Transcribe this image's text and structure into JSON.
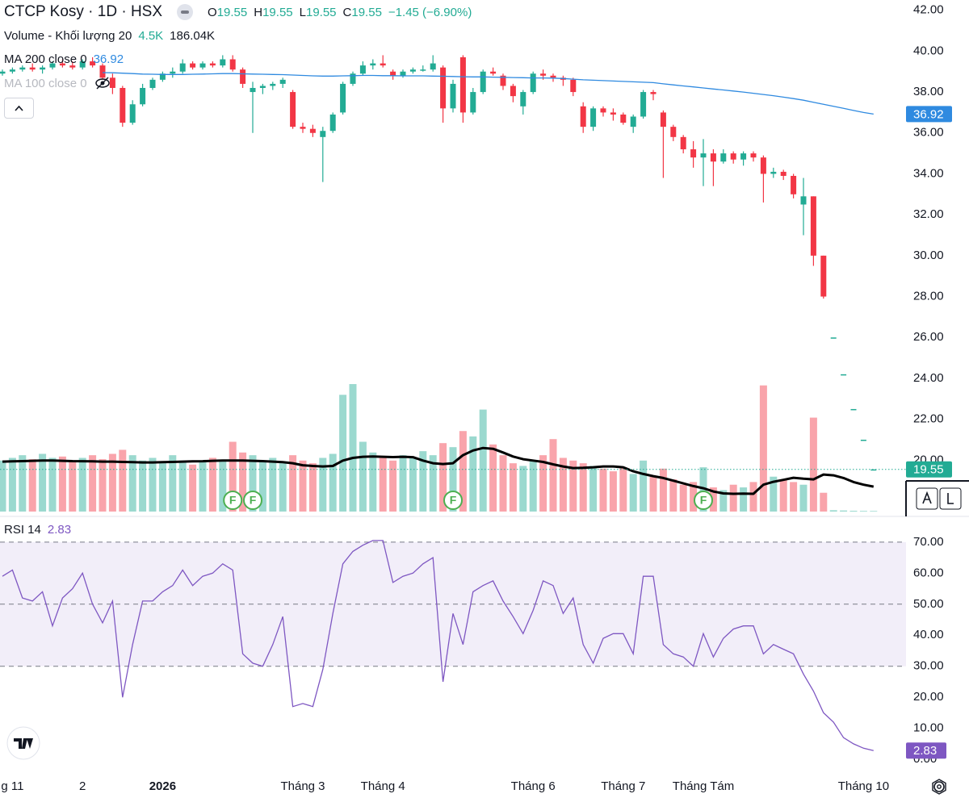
{
  "chart_data": [
    {
      "type": "candlestick",
      "title": "CTCP Kosy · 1D · HSX",
      "ohlc_labels": [
        "O",
        "H",
        "L",
        "C"
      ],
      "change": "−1.45 (−6.90%)",
      "up_color": "#22ab94",
      "down_color": "#f23645",
      "ylim": [
        18,
        42.5
      ],
      "yticks": [
        {
          "value": 42,
          "label": "42.00"
        },
        {
          "value": 40,
          "label": "40.00"
        },
        {
          "value": 38,
          "label": "38.00"
        },
        {
          "value": 36,
          "label": "36.00"
        },
        {
          "value": 34,
          "label": "34.00"
        },
        {
          "value": 32,
          "label": "32.00"
        },
        {
          "value": 30,
          "label": "30.00"
        },
        {
          "value": 28,
          "label": "28.00"
        },
        {
          "value": 26,
          "label": "26.00"
        },
        {
          "value": 24,
          "label": "24.00"
        },
        {
          "value": 22,
          "label": "22.00"
        },
        {
          "value": 20,
          "label": "20.00"
        }
      ],
      "grid": false,
      "categories": [
        null,
        "g 11",
        null,
        null,
        null,
        null,
        null,
        null,
        "2",
        null,
        null,
        null,
        null,
        null,
        null,
        null,
        "2026",
        null,
        null,
        null,
        null,
        null,
        null,
        null,
        null,
        null,
        null,
        null,
        null,
        null,
        "Tháng 3",
        null,
        null,
        null,
        null,
        null,
        null,
        null,
        "Tháng 4",
        null,
        null,
        null,
        null,
        null,
        null,
        null,
        null,
        null,
        null,
        null,
        null,
        null,
        null,
        "Tháng 6",
        null,
        null,
        null,
        null,
        null,
        null,
        null,
        null,
        "Tháng 7",
        null,
        null,
        null,
        null,
        null,
        null,
        null,
        "Tháng Tám",
        null,
        null,
        null,
        null,
        null,
        null,
        null,
        null,
        null,
        null,
        null,
        null,
        null,
        null,
        null,
        "Tháng 10",
        null
      ],
      "ohlc": [
        [
          38.9,
          39.1,
          38.8,
          39.0
        ],
        [
          39.0,
          39.2,
          38.9,
          39.1
        ],
        [
          39.1,
          39.3,
          39.0,
          39.2
        ],
        [
          39.2,
          39.4,
          39.0,
          39.1
        ],
        [
          39.1,
          39.3,
          38.9,
          39.2
        ],
        [
          39.2,
          39.5,
          39.1,
          39.4
        ],
        [
          39.4,
          39.6,
          39.2,
          39.3
        ],
        [
          39.3,
          39.5,
          39.1,
          39.2
        ],
        [
          39.2,
          39.6,
          39.1,
          39.5
        ],
        [
          39.5,
          39.7,
          39.2,
          39.3
        ],
        [
          39.3,
          39.4,
          38.6,
          38.7
        ],
        [
          38.7,
          38.9,
          37.9,
          38.2
        ],
        [
          38.2,
          38.3,
          36.3,
          36.5
        ],
        [
          36.5,
          37.6,
          36.4,
          37.4
        ],
        [
          37.4,
          38.4,
          37.3,
          38.2
        ],
        [
          38.2,
          38.7,
          38.1,
          38.6
        ],
        [
          38.6,
          39.0,
          38.5,
          38.9
        ],
        [
          38.9,
          39.2,
          38.7,
          39.0
        ],
        [
          39.0,
          39.6,
          38.9,
          39.4
        ],
        [
          39.4,
          39.5,
          39.1,
          39.2
        ],
        [
          39.2,
          39.5,
          39.1,
          39.4
        ],
        [
          39.4,
          39.5,
          39.2,
          39.3
        ],
        [
          39.3,
          39.8,
          39.2,
          39.6
        ],
        [
          39.6,
          39.8,
          39.0,
          39.1
        ],
        [
          39.1,
          39.2,
          38.2,
          38.4
        ],
        [
          38.0,
          38.5,
          36.0,
          38.2
        ],
        [
          38.2,
          38.4,
          37.9,
          38.3
        ],
        [
          38.3,
          38.5,
          38.1,
          38.4
        ],
        [
          38.4,
          38.7,
          38.2,
          38.6
        ],
        [
          38.0,
          38.1,
          36.2,
          36.3
        ],
        [
          36.3,
          36.5,
          36.0,
          36.2
        ],
        [
          36.2,
          36.4,
          35.8,
          36.0
        ],
        [
          35.8,
          36.3,
          33.6,
          36.1
        ],
        [
          36.1,
          37.0,
          36.0,
          36.9
        ],
        [
          37.0,
          38.5,
          36.9,
          38.4
        ],
        [
          38.4,
          39.0,
          38.3,
          38.9
        ],
        [
          38.9,
          39.5,
          38.8,
          39.3
        ],
        [
          39.3,
          39.6,
          39.1,
          39.4
        ],
        [
          39.4,
          39.8,
          39.2,
          39.3
        ],
        [
          39.0,
          39.1,
          38.6,
          38.8
        ],
        [
          38.8,
          39.1,
          38.7,
          39.0
        ],
        [
          39.0,
          39.2,
          38.9,
          39.1
        ],
        [
          39.1,
          39.3,
          39.0,
          39.1
        ],
        [
          39.1,
          39.8,
          39.0,
          39.4
        ],
        [
          39.2,
          39.3,
          36.5,
          37.2
        ],
        [
          37.2,
          38.6,
          37.0,
          38.4
        ],
        [
          39.7,
          39.8,
          36.5,
          37.0
        ],
        [
          37.0,
          38.2,
          36.9,
          38.0
        ],
        [
          38.0,
          39.1,
          37.9,
          39.0
        ],
        [
          39.0,
          39.2,
          38.8,
          38.9
        ],
        [
          38.8,
          38.9,
          38.1,
          38.3
        ],
        [
          38.3,
          38.4,
          37.5,
          37.8
        ],
        [
          37.3,
          38.1,
          36.9,
          38.0
        ],
        [
          38.0,
          39.0,
          37.9,
          38.9
        ],
        [
          38.9,
          39.1,
          38.6,
          38.8
        ],
        [
          38.8,
          38.9,
          38.5,
          38.7
        ],
        [
          38.7,
          38.8,
          38.3,
          38.6
        ],
        [
          38.6,
          38.7,
          37.8,
          38.0
        ],
        [
          37.3,
          37.5,
          36.0,
          36.3
        ],
        [
          36.3,
          37.3,
          36.1,
          37.2
        ],
        [
          37.2,
          37.3,
          36.8,
          37.0
        ],
        [
          37.0,
          37.2,
          36.6,
          36.9
        ],
        [
          36.9,
          37.0,
          36.4,
          36.5
        ],
        [
          36.3,
          36.9,
          36.0,
          36.8
        ],
        [
          36.8,
          38.1,
          36.7,
          38.0
        ],
        [
          38.0,
          38.1,
          37.6,
          37.9
        ],
        [
          37.0,
          37.1,
          33.8,
          36.3
        ],
        [
          36.3,
          36.4,
          35.6,
          35.8
        ],
        [
          35.8,
          35.9,
          35.0,
          35.2
        ],
        [
          35.2,
          35.6,
          34.3,
          34.8
        ],
        [
          34.8,
          35.7,
          33.4,
          35.0
        ],
        [
          35.0,
          35.2,
          33.4,
          34.6
        ],
        [
          34.6,
          35.2,
          34.5,
          35.0
        ],
        [
          35.0,
          35.1,
          34.5,
          34.7
        ],
        [
          34.7,
          35.1,
          34.4,
          35.0
        ],
        [
          35.0,
          35.1,
          34.6,
          34.8
        ],
        [
          34.8,
          34.9,
          32.6,
          34.0
        ],
        [
          34.0,
          34.3,
          33.8,
          34.1
        ],
        [
          34.1,
          34.2,
          33.7,
          33.9
        ],
        [
          33.9,
          34.0,
          32.8,
          33.0
        ],
        [
          32.5,
          33.8,
          31.0,
          32.9
        ],
        [
          32.9,
          32.9,
          29.5,
          30.0
        ],
        [
          30.0,
          30.0,
          27.9,
          28.0
        ],
        [
          26.0,
          26.0,
          26.0,
          26.0
        ],
        [
          24.2,
          24.2,
          24.2,
          24.2
        ],
        [
          22.5,
          22.5,
          22.5,
          22.5
        ],
        [
          21.0,
          21.0,
          21.0,
          21.0
        ],
        [
          19.55,
          19.55,
          19.55,
          19.55
        ]
      ],
      "series": [
        {
          "name": "MA 200 close 0",
          "color": "#2f8ae0",
          "values": [
            null,
            null,
            null,
            null,
            null,
            null,
            null,
            null,
            null,
            null,
            38.95,
            38.94,
            38.92,
            38.9,
            38.88,
            38.87,
            38.86,
            38.86,
            38.86,
            38.87,
            38.88,
            38.89,
            38.9,
            38.9,
            38.89,
            38.88,
            38.87,
            38.86,
            38.85,
            38.83,
            38.81,
            38.79,
            38.78,
            38.78,
            38.79,
            38.8,
            38.81,
            38.81,
            38.8,
            38.8,
            38.79,
            38.79,
            38.79,
            38.78,
            38.77,
            38.76,
            38.75,
            38.74,
            38.74,
            38.73,
            38.72,
            38.71,
            38.7,
            38.69,
            38.69,
            38.68,
            38.66,
            38.63,
            38.6,
            38.58,
            38.56,
            38.54,
            38.52,
            38.5,
            38.48,
            38.46,
            38.4,
            38.35,
            38.3,
            38.25,
            38.2,
            38.15,
            38.1,
            38.05,
            38.0,
            37.94,
            37.88,
            37.82,
            37.75,
            37.68,
            37.6,
            37.5,
            37.4,
            37.3,
            37.2,
            37.1,
            37.0,
            36.92
          ]
        },
        {
          "name": "MA 100 close 0",
          "hidden": true
        }
      ],
      "volume": {
        "name": "Volume - Khối lượng 20",
        "last_label": "4.5K",
        "values": [
          380,
          400,
          420,
          390,
          430,
          400,
          410,
          380,
          400,
          420,
          390,
          430,
          460,
          420,
          380,
          400,
          360,
          420,
          380,
          350,
          370,
          400,
          380,
          520,
          440,
          420,
          380,
          400,
          360,
          420,
          380,
          360,
          400,
          430,
          870,
          950,
          520,
          440,
          400,
          380,
          420,
          400,
          450,
          420,
          510,
          480,
          600,
          560,
          760,
          500,
          420,
          360,
          340,
          380,
          420,
          540,
          400,
          380,
          360,
          340,
          320,
          300,
          330,
          280,
          380,
          260,
          320,
          240,
          200,
          220,
          330,
          180,
          160,
          200,
          180,
          220,
          940,
          260,
          240,
          220,
          200,
          700,
          140,
          10,
          8,
          6,
          5,
          4.5
        ],
        "ma": {
          "color": "#000000",
          "last_label": "186.04K",
          "values": [
            372,
            374,
            376,
            378,
            380,
            380,
            378,
            376,
            375,
            374,
            372,
            372,
            370,
            368,
            366,
            366,
            368,
            370,
            372,
            374,
            375,
            378,
            380,
            380,
            380,
            378,
            376,
            372,
            368,
            360,
            345,
            340,
            336,
            340,
            380,
            400,
            408,
            410,
            408,
            406,
            408,
            405,
            380,
            360,
            354,
            360,
            420,
            455,
            474,
            468,
            440,
            410,
            390,
            380,
            370,
            352,
            336,
            324,
            326,
            330,
            336,
            336,
            330,
            300,
            280,
            264,
            250,
            230,
            210,
            190,
            174,
            150,
            135,
            132,
            134,
            132,
            200,
            222,
            236,
            252,
            245,
            240,
            276,
            270,
            250,
            220,
            200,
            186.04
          ]
        }
      },
      "markers": [
        null,
        null,
        null,
        null,
        null,
        null,
        null,
        null,
        null,
        null,
        null,
        null,
        null,
        null,
        null,
        null,
        null,
        null,
        null,
        null,
        null,
        null,
        null,
        "F",
        null,
        "F",
        null,
        null,
        null,
        null,
        null,
        null,
        null,
        null,
        null,
        null,
        null,
        null,
        null,
        null,
        null,
        null,
        null,
        null,
        null,
        "F",
        null,
        null,
        null,
        null,
        null,
        null,
        null,
        null,
        null,
        null,
        null,
        null,
        null,
        null,
        null,
        null,
        null,
        null,
        null,
        null,
        null,
        null,
        null,
        null,
        "F",
        null,
        null,
        null,
        null,
        null,
        null,
        null,
        null,
        null,
        null,
        null,
        null,
        null,
        null,
        null,
        null,
        null
      ]
    },
    {
      "type": "line",
      "ylim": [
        -3.6,
        77.5
      ],
      "yticks": [
        {
          "value": 70,
          "label": "70.00"
        },
        {
          "value": 60,
          "label": "60.00"
        },
        {
          "value": 50,
          "label": "50.00"
        },
        {
          "value": 40,
          "label": "40.00"
        },
        {
          "value": 30,
          "label": "30.00"
        },
        {
          "value": 20,
          "label": "20.00"
        },
        {
          "value": 10,
          "label": "10.00"
        },
        {
          "value": 0,
          "label": "0.00"
        }
      ],
      "levels": [
        70,
        50,
        30
      ],
      "band": [
        30,
        70
      ],
      "series": [
        {
          "name": "RSI 14",
          "color": "#7e57c2",
          "values": [
            59,
            61,
            52,
            51,
            54,
            43,
            52,
            55,
            60,
            50,
            44,
            51,
            20,
            37,
            51,
            51,
            54,
            56,
            61,
            56,
            59,
            60,
            63,
            61,
            34,
            31,
            30,
            37,
            46,
            17,
            18,
            17,
            29,
            47,
            63,
            67,
            69,
            70.5,
            70.5,
            57,
            59,
            60,
            63,
            65,
            25,
            47,
            37,
            54,
            56,
            57.5,
            51,
            46,
            40.5,
            48,
            57.5,
            56,
            47,
            52,
            37,
            31,
            39,
            40.5,
            40.5,
            34,
            59,
            59,
            37,
            34,
            33,
            30,
            40.5,
            33,
            39,
            42,
            43,
            43,
            34,
            37,
            35.5,
            34,
            27.5,
            22,
            15,
            12,
            7,
            5,
            3.6,
            2.83
          ]
        }
      ]
    }
  ]
}
